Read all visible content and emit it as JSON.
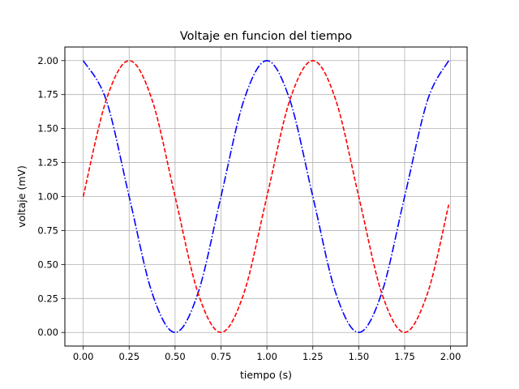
{
  "chart_data": {
    "type": "line",
    "title": "Voltaje en funcion del tiempo",
    "xlabel": "tiempo (s)",
    "ylabel": "voltaje (mV)",
    "xlim": [
      -0.1,
      2.09
    ],
    "ylim": [
      -0.1,
      2.1
    ],
    "x_ticks": [
      0.0,
      0.25,
      0.5,
      0.75,
      1.0,
      1.25,
      1.5,
      1.75,
      2.0
    ],
    "x_tick_labels": [
      "0.00",
      "0.25",
      "0.50",
      "0.75",
      "1.00",
      "1.25",
      "1.50",
      "1.75",
      "2.00"
    ],
    "y_ticks": [
      0.0,
      0.25,
      0.5,
      0.75,
      1.0,
      1.25,
      1.5,
      1.75,
      2.0
    ],
    "y_tick_labels": [
      "0.00",
      "0.25",
      "0.50",
      "0.75",
      "1.00",
      "1.25",
      "1.50",
      "1.75",
      "2.00"
    ],
    "grid": true,
    "series": [
      {
        "color": "#0000ff",
        "linestyle": "dashdot",
        "x": [
          0.0,
          0.125,
          0.25,
          0.375,
          0.5,
          0.625,
          0.75,
          0.875,
          1.0,
          1.125,
          1.25,
          1.375,
          1.5,
          1.625,
          1.75,
          1.875,
          1.99
        ],
        "y": [
          2.0,
          1.71,
          1.0,
          0.29,
          0.0,
          0.29,
          1.0,
          1.71,
          2.0,
          1.71,
          1.0,
          0.29,
          0.0,
          0.29,
          1.0,
          1.71,
          2.0
        ]
      },
      {
        "color": "#ff0000",
        "linestyle": "dashed",
        "x": [
          0.0,
          0.125,
          0.25,
          0.375,
          0.5,
          0.625,
          0.75,
          0.875,
          1.0,
          1.125,
          1.25,
          1.375,
          1.5,
          1.625,
          1.75,
          1.875,
          1.99
        ],
        "y": [
          1.0,
          1.71,
          2.0,
          1.71,
          1.0,
          0.29,
          0.0,
          0.29,
          1.0,
          1.71,
          2.0,
          1.71,
          1.0,
          0.29,
          0.0,
          0.29,
          0.94
        ]
      }
    ]
  }
}
